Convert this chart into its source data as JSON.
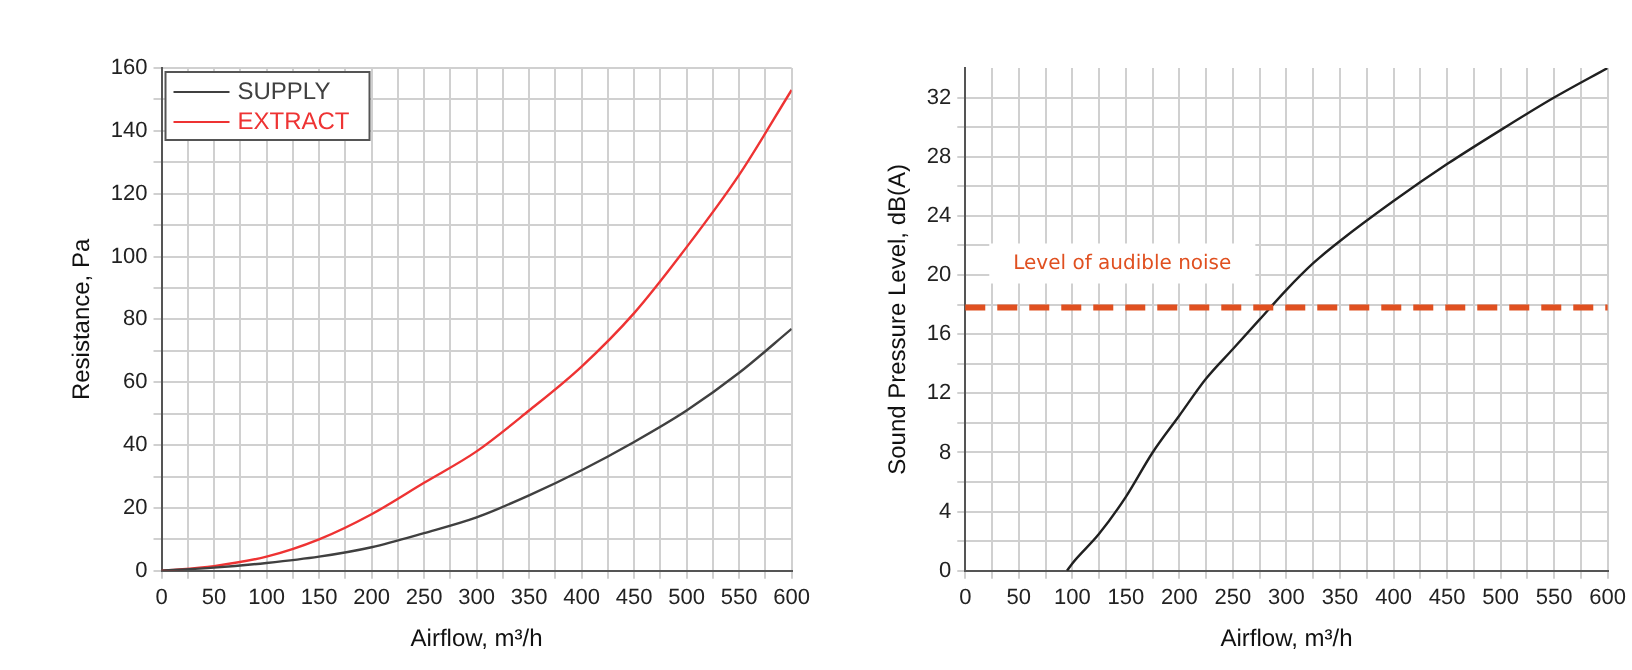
{
  "chart_data": [
    {
      "type": "line",
      "xlabel": "Airflow, m³/h",
      "ylabel": "Resistance, Pa",
      "x": [
        0,
        50,
        100,
        150,
        200,
        250,
        300,
        350,
        400,
        450,
        500,
        550,
        600
      ],
      "series": [
        {
          "name": "SUPPLY",
          "color": "#404040",
          "values": [
            0,
            1,
            2.5,
            4.5,
            7.5,
            12,
            17,
            24,
            32,
            41,
            51,
            63,
            77
          ]
        },
        {
          "name": "EXTRACT",
          "color": "#ee3333",
          "values": [
            0,
            1.5,
            4.5,
            10,
            18,
            28,
            38,
            51,
            65,
            82,
            103,
            126,
            153
          ]
        }
      ],
      "xlim": [
        0,
        600
      ],
      "xticks": [
        0,
        {
          "value": 25,
          "label": null
        },
        50,
        {
          "value": 75,
          "label": null
        },
        100,
        {
          "value": 125,
          "label": null
        },
        150,
        {
          "value": 175,
          "label": null
        },
        200,
        {
          "value": 225,
          "label": null
        },
        250,
        {
          "value": 275,
          "label": null
        },
        300,
        {
          "value": 325,
          "label": null
        },
        350,
        {
          "value": 375,
          "label": null
        },
        400,
        {
          "value": 425,
          "label": null
        },
        450,
        {
          "value": 475,
          "label": null
        },
        500,
        {
          "value": 525,
          "label": null
        },
        550,
        {
          "value": 575,
          "label": null
        },
        600
      ],
      "ylim": [
        0,
        160
      ],
      "yticks": [
        0,
        {
          "value": 10,
          "label": null
        },
        20,
        {
          "value": 30,
          "label": null
        },
        40,
        {
          "value": 50,
          "label": null
        },
        60,
        {
          "value": 70,
          "label": null
        },
        80,
        {
          "value": 90,
          "label": null
        },
        100,
        {
          "value": 110,
          "label": null
        },
        120,
        {
          "value": 130,
          "label": null
        },
        140,
        {
          "value": 150,
          "label": null
        },
        160
      ],
      "grid": true,
      "legend": "top left",
      "marker": "none",
      "line_style": "solid"
    },
    {
      "type": "line",
      "xlabel": "Airflow, m³/h",
      "ylabel": "Sound Pressure Level, dB(A)",
      "x": [
        95,
        100,
        125,
        150,
        175,
        200,
        225,
        250,
        275,
        300,
        325,
        350,
        400,
        450,
        500,
        550,
        600
      ],
      "series": [
        {
          "color": "#202020",
          "values": [
            0,
            0.5,
            2.5,
            5,
            8,
            10.5,
            13,
            15,
            17,
            19,
            20.8,
            22.3,
            25,
            27.5,
            29.8,
            32,
            34
          ]
        }
      ],
      "xlim": [
        0,
        600
      ],
      "xticks": [
        0,
        {
          "value": 25,
          "label": null
        },
        50,
        {
          "value": 75,
          "label": null
        },
        100,
        {
          "value": 125,
          "label": null
        },
        150,
        {
          "value": 175,
          "label": null
        },
        200,
        {
          "value": 225,
          "label": null
        },
        250,
        {
          "value": 275,
          "label": null
        },
        300,
        {
          "value": 325,
          "label": null
        },
        350,
        {
          "value": 375,
          "label": null
        },
        400,
        {
          "value": 425,
          "label": null
        },
        450,
        {
          "value": 475,
          "label": null
        },
        500,
        {
          "value": 525,
          "label": null
        },
        550,
        {
          "value": 575,
          "label": null
        },
        600
      ],
      "ylim": [
        0,
        34
      ],
      "yticks": [
        0,
        {
          "value": 2,
          "label": null
        },
        4,
        {
          "value": 6,
          "label": null
        },
        8,
        {
          "value": 10,
          "label": null
        },
        12,
        {
          "value": 14,
          "label": null
        },
        16,
        {
          "value": 18,
          "label": null
        },
        20,
        {
          "value": 22,
          "label": null
        },
        24,
        {
          "value": 26,
          "label": null
        },
        28,
        {
          "value": 30,
          "label": null
        },
        32
      ],
      "ref_lines": [
        {
          "axis": "y",
          "value": 17.8,
          "label": "Level of audible noise",
          "color": "#e05020",
          "line_style": "dashed"
        }
      ],
      "grid": true,
      "legend": false,
      "marker": "none",
      "line_style": "solid"
    }
  ]
}
